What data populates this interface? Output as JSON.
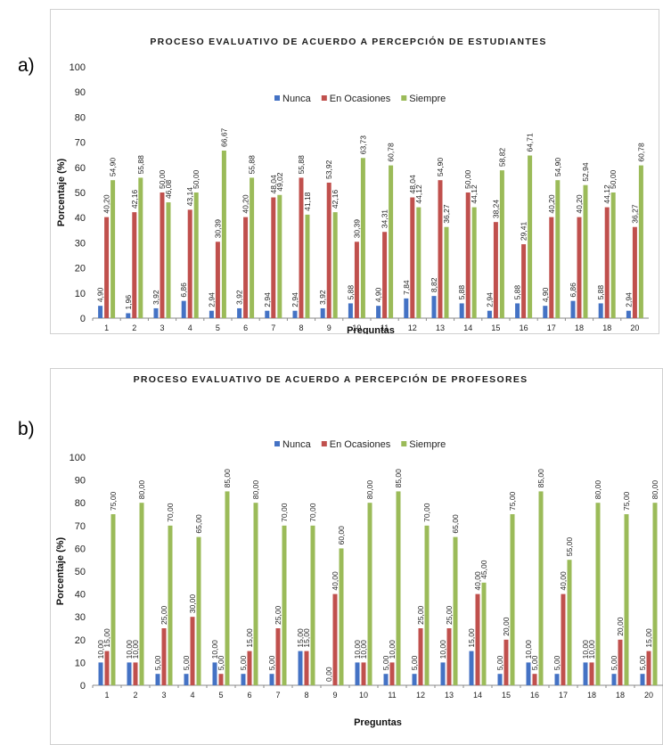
{
  "panels": [
    {
      "tag": "a)"
    },
    {
      "tag": "b)"
    }
  ],
  "colors": {
    "nunca": "#4472C4",
    "ocasiones": "#C0504D",
    "siempre": "#9BBB59"
  },
  "chart_data": [
    {
      "type": "bar",
      "title": "PROCESO EVALUATIVO DE ACUERDO A PERCEPCIÓN DE ESTUDIANTES",
      "xlabel": "Preguntas",
      "ylabel": "Porcentaje (%)",
      "ylim": [
        0,
        100
      ],
      "yticks": [
        "0",
        "10",
        "20",
        "30",
        "40",
        "50",
        "60",
        "70",
        "80",
        "90",
        "100"
      ],
      "legend_position": "top-center",
      "categories": [
        "1",
        "2",
        "3",
        "4",
        "5",
        "6",
        "7",
        "8",
        "9",
        "10",
        "11",
        "12",
        "13",
        "14",
        "15",
        "16",
        "17",
        "18",
        "18",
        "20"
      ],
      "series": [
        {
          "name": "Nunca",
          "values": [
            4.9,
            1.96,
            3.92,
            6.86,
            2.94,
            3.92,
            2.94,
            2.94,
            3.92,
            5.88,
            4.9,
            7.84,
            8.82,
            5.88,
            2.94,
            5.88,
            4.9,
            6.86,
            5.88,
            2.94
          ],
          "labels": [
            "4,90",
            "1,96",
            "3,92",
            "6,86",
            "2,94",
            "3,92",
            "2,94",
            "2,94",
            "3,92",
            "5,88",
            "4,90",
            "7,84",
            "8,82",
            "5,88",
            "2,94",
            "5,88",
            "4,90",
            "6,86",
            "5,88",
            "2,94"
          ]
        },
        {
          "name": "En Ocasiones",
          "values": [
            40.2,
            42.16,
            50.0,
            43.14,
            30.39,
            40.2,
            48.04,
            55.88,
            53.92,
            30.39,
            34.31,
            48.04,
            54.9,
            50.0,
            38.24,
            29.41,
            40.2,
            40.2,
            44.12,
            36.27
          ],
          "labels": [
            "40,20",
            "42,16",
            "50,00",
            "43,14",
            "30,39",
            "40,20",
            "48,04",
            "55,88",
            "53,92",
            "30,39",
            "34,31",
            "48,04",
            "54,90",
            "50,00",
            "38,24",
            "29,41",
            "40,20",
            "40,20",
            "44,12",
            "36,27"
          ]
        },
        {
          "name": "Siempre",
          "values": [
            54.9,
            55.88,
            46.08,
            50.0,
            66.67,
            55.88,
            49.02,
            41.18,
            42.16,
            63.73,
            60.78,
            44.12,
            36.27,
            44.12,
            58.82,
            64.71,
            54.9,
            52.94,
            50.0,
            60.78
          ],
          "labels": [
            "54,90",
            "55,88",
            "46,08",
            "50,00",
            "66,67",
            "55,88",
            "49,02",
            "41,18",
            "42,16",
            "63,73",
            "60,78",
            "44,12",
            "36,27",
            "44,12",
            "58,82",
            "64,71",
            "54,90",
            "52,94",
            "50,00",
            "60,78"
          ]
        }
      ]
    },
    {
      "type": "bar",
      "title": "PROCESO EVALUATIVO DE ACUERDO A PERCEPCIÓN DE PROFESORES",
      "xlabel": "Preguntas",
      "ylabel": "Porcentaje (%)",
      "ylim": [
        0,
        100
      ],
      "yticks": [
        "0",
        "10",
        "20",
        "30",
        "40",
        "50",
        "60",
        "70",
        "80",
        "90",
        "100"
      ],
      "legend_position": "top-center",
      "categories": [
        "1",
        "2",
        "3",
        "4",
        "5",
        "6",
        "7",
        "8",
        "9",
        "10",
        "11",
        "12",
        "13",
        "14",
        "15",
        "16",
        "17",
        "18",
        "18",
        "20"
      ],
      "series": [
        {
          "name": "Nunca",
          "values": [
            10,
            10,
            5,
            5,
            10,
            5,
            5,
            15,
            0,
            10,
            5,
            5,
            10,
            15,
            5,
            10,
            5,
            10,
            5,
            5
          ],
          "labels": [
            "10,00",
            "10,00",
            "5,00",
            "5,00",
            "10,00",
            "5,00",
            "5,00",
            "15,00",
            "0,00",
            "10,00",
            "5,00",
            "5,00",
            "10,00",
            "15,00",
            "5,00",
            "10,00",
            "5,00",
            "10,00",
            "5,00",
            "5,00"
          ]
        },
        {
          "name": "En Ocasiones",
          "values": [
            15,
            10,
            25,
            30,
            5,
            15,
            25,
            15,
            40,
            10,
            10,
            25,
            25,
            40,
            20,
            5,
            40,
            10,
            20,
            15
          ],
          "labels": [
            "15,00",
            "10,00",
            "25,00",
            "30,00",
            "5,00",
            "15,00",
            "25,00",
            "15,00",
            "40,00",
            "10,00",
            "10,00",
            "25,00",
            "25,00",
            "40,00",
            "20,00",
            "5,00",
            "40,00",
            "10,00",
            "20,00",
            "15,00"
          ]
        },
        {
          "name": "Siempre",
          "values": [
            75,
            80,
            70,
            65,
            85,
            80,
            70,
            70,
            60,
            80,
            85,
            70,
            65,
            45,
            75,
            85,
            55,
            80,
            75,
            80
          ],
          "labels": [
            "75,00",
            "80,00",
            "70,00",
            "65,00",
            "85,00",
            "80,00",
            "70,00",
            "70,00",
            "60,00",
            "80,00",
            "85,00",
            "70,00",
            "65,00",
            "45,00",
            "75,00",
            "85,00",
            "55,00",
            "80,00",
            "75,00",
            "80,00"
          ]
        }
      ]
    }
  ]
}
